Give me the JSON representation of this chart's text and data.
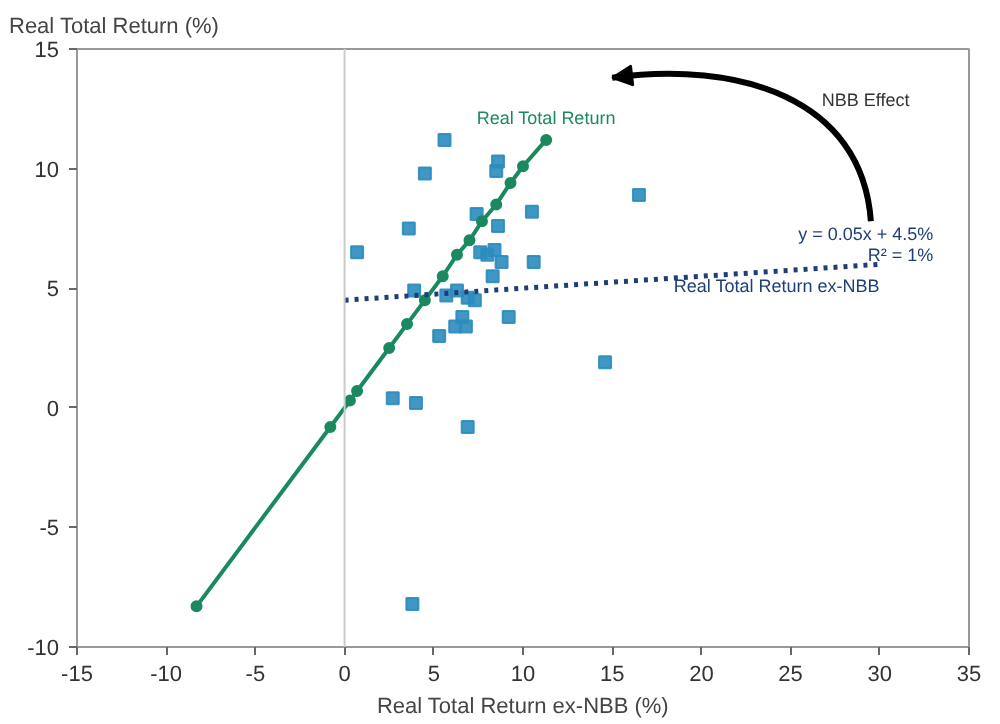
{
  "chart_data": {
    "type": "scatter",
    "xlabel": "Real Total Return ex-NBB (%)",
    "ylabel": "Real Total Return (%)",
    "xlim": [
      -15,
      35
    ],
    "xticks": [
      -15,
      -10,
      -5,
      0,
      5,
      10,
      15,
      20,
      25,
      30,
      35
    ],
    "ylim": [
      -10,
      15
    ],
    "yticks": [
      -10,
      -5,
      0,
      5,
      10,
      15
    ],
    "grid": false,
    "marker": "square",
    "series": [
      {
        "color": "#2b8cbe",
        "x": [
          5.6,
          4.5,
          8.6,
          8.5,
          16.5,
          10.5,
          7.4,
          3.6,
          8.6,
          0.7,
          7.6,
          8.0,
          8.4,
          8.8,
          10.6,
          8.3,
          6.3,
          3.9,
          5.7,
          6.9,
          7.3,
          9.2,
          6.6,
          6.2,
          6.8,
          5.3,
          14.6,
          2.7,
          4.0,
          6.9,
          3.8
        ],
        "values": [
          11.2,
          9.8,
          10.3,
          9.9,
          8.9,
          8.2,
          8.1,
          7.5,
          7.6,
          6.5,
          6.5,
          6.4,
          6.6,
          6.1,
          6.1,
          5.5,
          4.9,
          4.9,
          4.7,
          4.6,
          4.5,
          3.8,
          3.8,
          3.4,
          3.4,
          3.0,
          1.9,
          0.4,
          0.2,
          -0.8,
          -8.2
        ]
      },
      {
        "type": "line",
        "name": "Real Total Return",
        "color": "#1a8a5e",
        "marker": "circle",
        "line_style": "solid",
        "x": [
          -8.3,
          -0.8,
          0.3,
          0.7,
          2.5,
          3.5,
          4.5,
          5.5,
          6.3,
          7.0,
          7.7,
          8.5,
          9.3,
          10.0,
          11.3
        ],
        "values": [
          -8.3,
          -0.8,
          0.3,
          0.7,
          2.5,
          3.5,
          4.5,
          5.5,
          6.4,
          7.0,
          7.8,
          8.5,
          9.4,
          10.1,
          11.2
        ]
      },
      {
        "type": "line",
        "name": "Real Total Return ex-NBB",
        "color": "#1f3e78",
        "marker": "none",
        "line_style": "dotted",
        "x": [
          0,
          30
        ],
        "values": [
          4.5,
          6.0
        ]
      }
    ],
    "ref_lines": [
      {
        "axis": "x",
        "value": 0,
        "color": "#cccccc",
        "line_style": "solid"
      }
    ],
    "annotations": [
      "NBB Effect",
      "y = 0.05x + 4.5%",
      "R² = 1%"
    ]
  }
}
